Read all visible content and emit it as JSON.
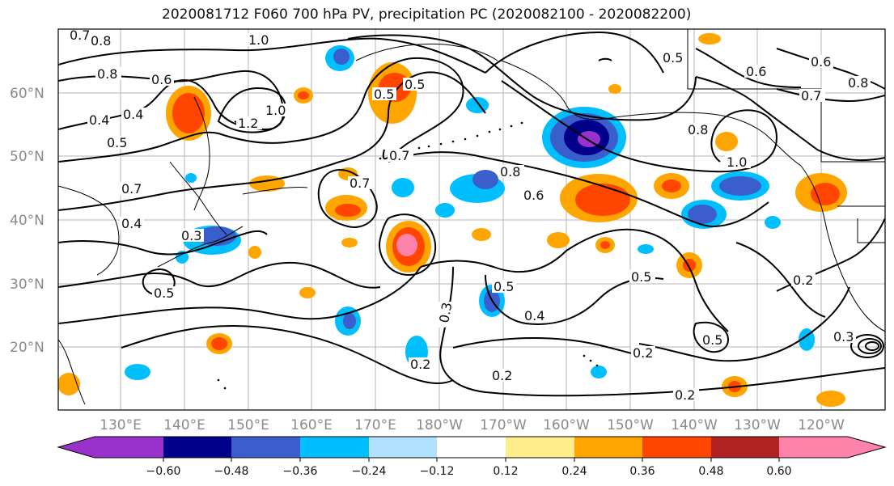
{
  "figure": {
    "title": "2020081712 F060 700 hPa PV, precipitation PC (2020082100 - 2020082200)"
  },
  "map": {
    "lat_ticks": [
      "60°N",
      "50°N",
      "40°N",
      "30°N",
      "20°N"
    ],
    "lon_ticks": [
      "130°E",
      "140°E",
      "150°E",
      "160°E",
      "170°E",
      "180°W",
      "170°W",
      "160°W",
      "150°W",
      "140°W",
      "130°W",
      "120°W"
    ],
    "contour_labels": [
      "0.7",
      "0.8",
      "1.0",
      "0.8",
      "0.6",
      "0.4",
      "0.4",
      "0.5",
      "1.2",
      "1.0",
      "0.5",
      "0.7",
      "0.8",
      "0.6",
      "0.5",
      "0.8",
      "0.7",
      "0.3",
      "0.5",
      "0.2",
      "0.2",
      "0.5",
      "0.4",
      "0.2",
      "0.2",
      "0.5",
      "0.3",
      "0.2",
      "0.7",
      "0.5",
      "0.6",
      "0.6",
      "0.8",
      "1.0",
      "0.5",
      "0.7",
      "0.4",
      "0.3"
    ],
    "colors": {
      "neg_060": "#9932CC",
      "neg_048": "#00008B",
      "neg_036": "#3A5FCD",
      "neg_024": "#00BFFF",
      "neg_012": "#B0E2FF",
      "pos_012": "#FFEC8B",
      "pos_024": "#FFA500",
      "pos_036": "#FF4500",
      "pos_048": "#B22222",
      "pos_060": "#FF82AB"
    }
  },
  "colorbar": {
    "tick_labels": [
      "−0.60",
      "−0.48",
      "−0.36",
      "−0.24",
      "−0.12",
      "0.12",
      "0.24",
      "0.36",
      "0.48",
      "0.60"
    ],
    "segment_colors": [
      "#9932CC",
      "#00008B",
      "#3A5FCD",
      "#00BFFF",
      "#B0E2FF",
      "#FFFFFF",
      "#FFEC8B",
      "#FFA500",
      "#FF4500",
      "#B22222",
      "#FF82AB"
    ]
  }
}
